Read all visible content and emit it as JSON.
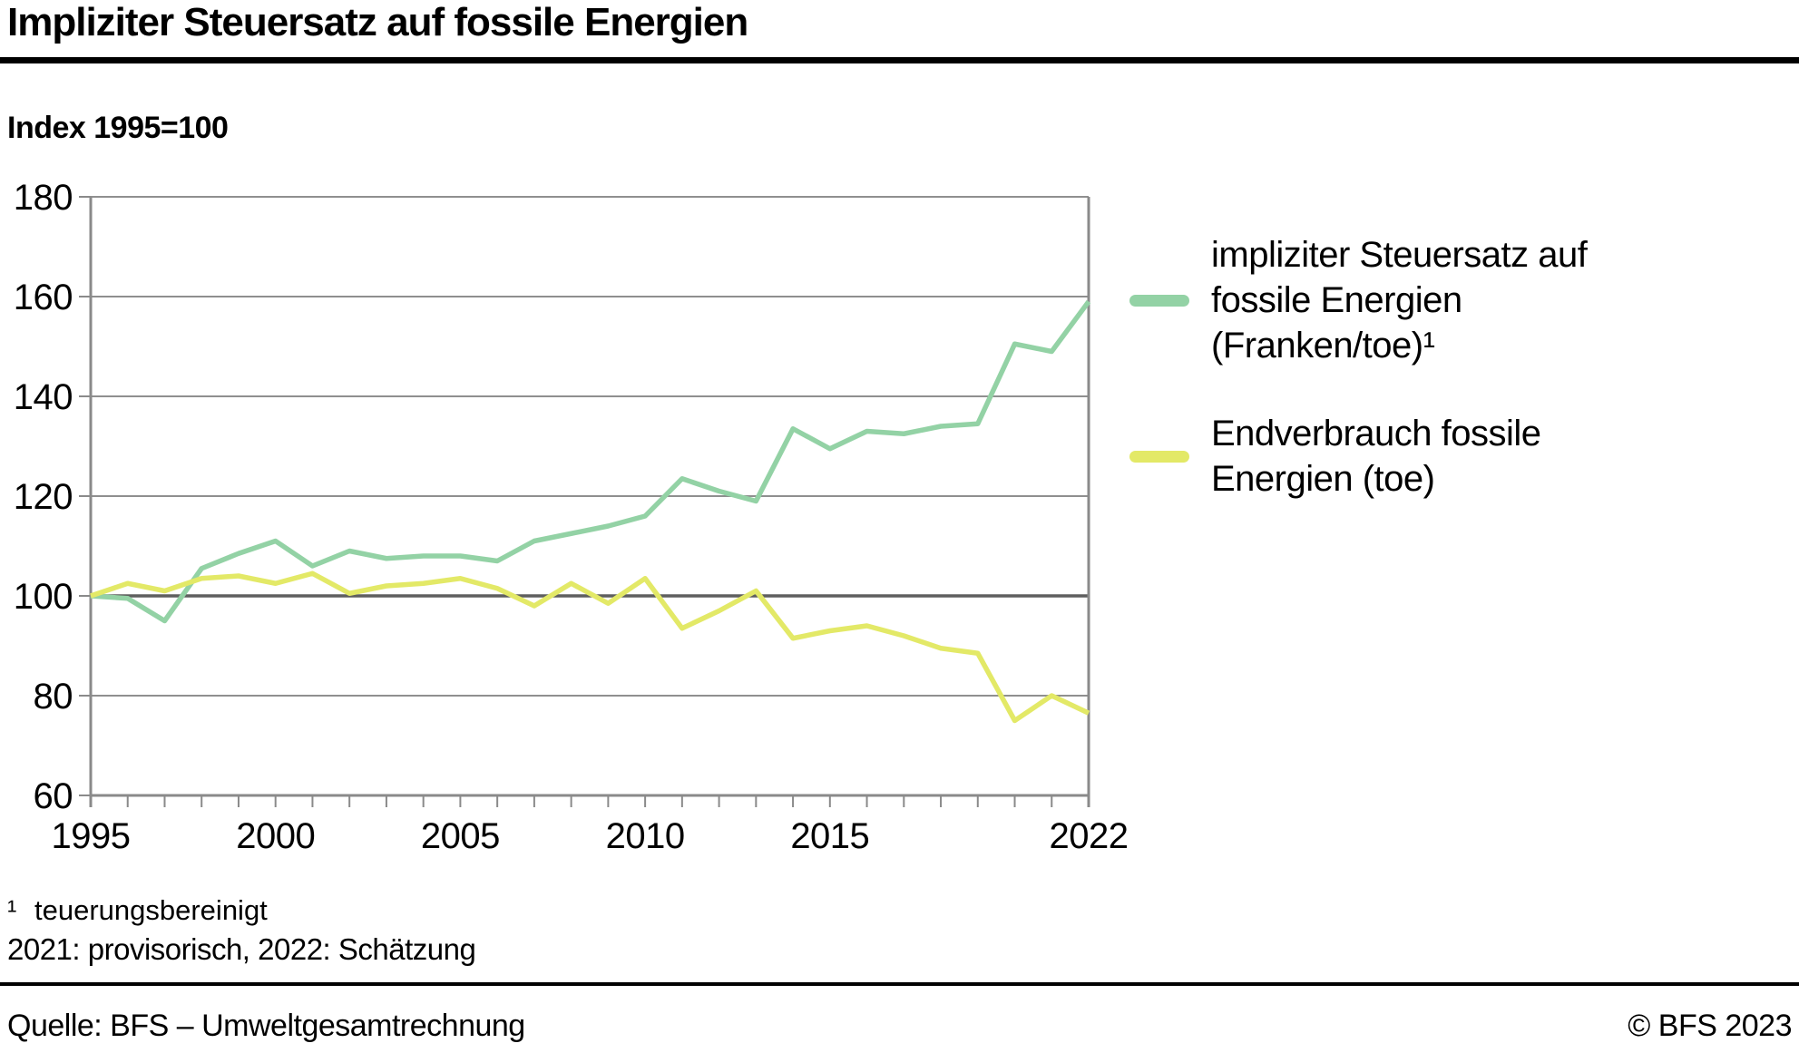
{
  "header": {
    "title": "Impliziter Steuersatz auf fossile Energien",
    "subtitle": "Index 1995=100"
  },
  "legend": {
    "items": [
      {
        "id": "steuersatz",
        "label": "impliziter Steuersatz auf\nfossile Energien\n(Franken/toe)¹",
        "color": "#93d2a5"
      },
      {
        "id": "endverbrauch",
        "label": "Endverbrauch fossile\nEnergien (toe)",
        "color": "#e3e967"
      }
    ]
  },
  "footnotes": {
    "marker": "¹",
    "note1": "teuerungsbereinigt",
    "note2": "2021: provisorisch, 2022: Schätzung"
  },
  "footer": {
    "source": "Quelle: BFS – Umweltgesamtrechnung",
    "copyright": "© BFS 2023"
  },
  "colors": {
    "green": "#93d2a5",
    "yellow": "#e3e967",
    "grid": "#8f8f8f",
    "axis": "#8a8a8a",
    "baseline": "#5e5e5e"
  },
  "chart_data": {
    "type": "line",
    "title": "Impliziter Steuersatz auf fossile Energien",
    "subtitle": "Index 1995=100",
    "x": [
      1995,
      1996,
      1997,
      1998,
      1999,
      2000,
      2001,
      2002,
      2003,
      2004,
      2005,
      2006,
      2007,
      2008,
      2009,
      2010,
      2011,
      2012,
      2013,
      2014,
      2015,
      2016,
      2017,
      2018,
      2019,
      2020,
      2021,
      2022
    ],
    "series": [
      {
        "name": "impliziter Steuersatz auf fossile Energien (Franken/toe)",
        "color": "#93d2a5",
        "values": [
          100,
          99.5,
          95,
          105.5,
          108.5,
          111,
          106,
          109,
          107.5,
          108,
          108,
          107,
          111,
          112.5,
          114,
          116,
          123.5,
          121,
          119,
          133.5,
          129.5,
          133,
          132.5,
          134,
          134.5,
          150.5,
          149,
          159
        ]
      },
      {
        "name": "Endverbrauch fossile Energien (toe)",
        "color": "#e3e967",
        "values": [
          100,
          102.5,
          101,
          103.5,
          104,
          102.5,
          104.5,
          100.5,
          102,
          102.5,
          103.5,
          101.5,
          98,
          102.5,
          98.5,
          103.5,
          93.5,
          97,
          101,
          91.5,
          93,
          94,
          92,
          89.5,
          88.5,
          75,
          80,
          76.5
        ]
      }
    ],
    "xlabel": "",
    "ylabel": "Index 1995=100",
    "ylim": [
      60,
      180
    ],
    "yticks": [
      60,
      80,
      100,
      120,
      140,
      160,
      180
    ],
    "xtick_labels": [
      1995,
      2000,
      2005,
      2010,
      2015,
      2022
    ],
    "baseline": 100,
    "grid": "horizontal-only",
    "legend_position": "right"
  }
}
